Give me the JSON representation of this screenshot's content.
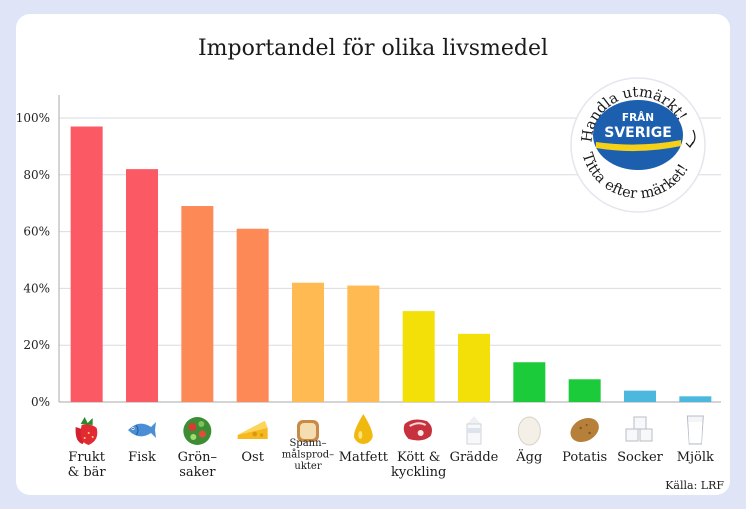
{
  "chart_data": {
    "type": "bar",
    "title": "Importandel för olika livsmedel",
    "categories": [
      "Frukt & bär",
      "Fisk",
      "Grön–saker",
      "Ost",
      "Spann–målsprod–ukter",
      "Matfett",
      "Kött & kyckling",
      "Grädde",
      "Ägg",
      "Potatis",
      "Socker",
      "Mjölk"
    ],
    "category_lines": [
      [
        "Frukt",
        "& bär"
      ],
      [
        "Fisk"
      ],
      [
        "Grön–",
        "saker"
      ],
      [
        "Ost"
      ],
      [
        "Spann–",
        "målsprod–",
        "ukter"
      ],
      [
        "Matfett"
      ],
      [
        "Kött &",
        "kyckling"
      ],
      [
        "Grädde"
      ],
      [
        "Ägg"
      ],
      [
        "Potatis"
      ],
      [
        "Socker"
      ],
      [
        "Mjölk"
      ]
    ],
    "values": [
      97,
      82,
      69,
      61,
      42,
      41,
      32,
      24,
      14,
      8,
      4,
      2
    ],
    "bar_colors": [
      "#fb5a64",
      "#fb5a64",
      "#fd8957",
      "#fd8957",
      "#ffba52",
      "#ffba52",
      "#f2e008",
      "#f2e008",
      "#1bcb3a",
      "#1bcb3a",
      "#4cb8de",
      "#4cb8de"
    ],
    "icons": [
      "strawberry-icon",
      "fish-icon",
      "salad-icon",
      "cheese-icon",
      "bread-icon",
      "oil-drop-icon",
      "steak-icon",
      "cream-carton-icon",
      "egg-icon",
      "potato-icon",
      "sugar-cubes-icon",
      "milk-glass-icon"
    ],
    "ylim": [
      0,
      100
    ],
    "yticks": [
      0,
      20,
      40,
      60,
      80,
      100
    ],
    "ytick_labels": [
      "0%",
      "20%",
      "40%",
      "60%",
      "80%",
      "100%"
    ],
    "grid": true,
    "xlabel": "",
    "ylabel": ""
  },
  "badge": {
    "top_text": "Handla utmärkt!",
    "bottom_text": "Titta efter märket!",
    "line1": "FRÅN",
    "line2": "SVERIGE",
    "logo_color": "#1b5fae",
    "stripe_color": "#f7d117"
  },
  "source": "Källa: LRF"
}
